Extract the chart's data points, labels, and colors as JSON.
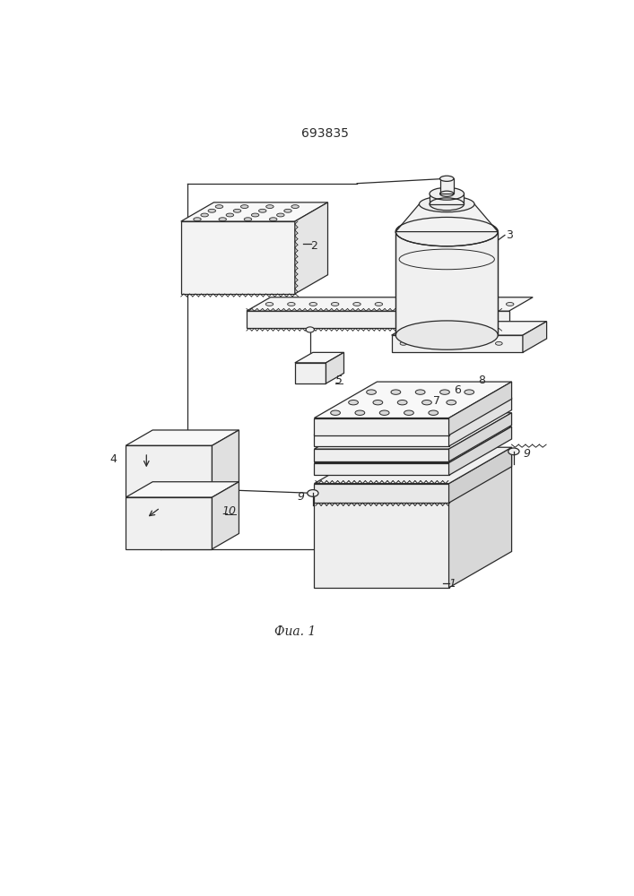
{
  "title": "693835",
  "caption": "Фиа. 1",
  "bg_color": "#ffffff",
  "line_color": "#2a2a2a",
  "title_fontsize": 10,
  "caption_fontsize": 10,
  "label_fontsize": 9
}
